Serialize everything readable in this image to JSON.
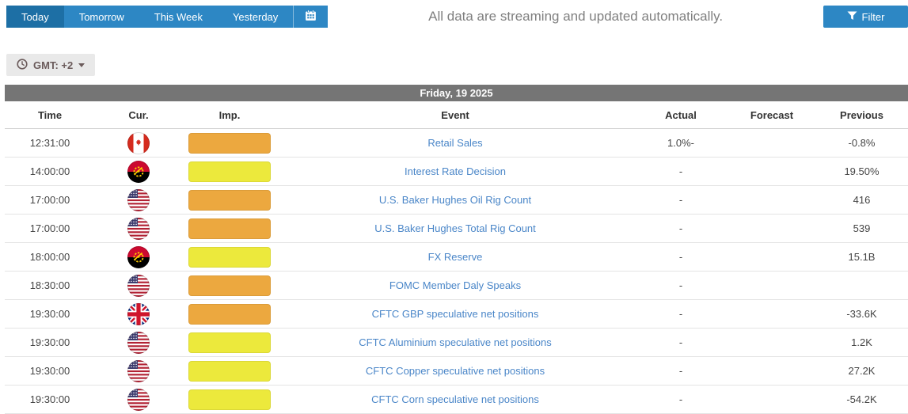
{
  "tabs": {
    "items": [
      {
        "label": "Today",
        "active": true
      },
      {
        "label": "Tomorrow",
        "active": false
      },
      {
        "label": "This Week",
        "active": false
      },
      {
        "label": "Yesterday",
        "active": false
      }
    ]
  },
  "header": {
    "streaming_note": "All data are streaming and updated automatically.",
    "filter_label": "Filter"
  },
  "toolbar": {
    "gmt_label": "GMT: +2"
  },
  "table": {
    "date_header": "Friday, 19 2025",
    "columns": [
      "Time",
      "Cur.",
      "Imp.",
      "Event",
      "Actual",
      "Forecast",
      "Previous"
    ],
    "rows": [
      {
        "time": "12:31:00",
        "currency": "canada",
        "importance": "orange",
        "event": "Retail Sales",
        "actual": "1.0%-",
        "forecast": "",
        "previous": "-0.8%"
      },
      {
        "time": "14:00:00",
        "currency": "angola",
        "importance": "yellow",
        "event": "Interest Rate Decision",
        "actual": "-",
        "forecast": "",
        "previous": "19.50%"
      },
      {
        "time": "17:00:00",
        "currency": "usa",
        "importance": "orange",
        "event": "U.S. Baker Hughes Oil Rig Count",
        "actual": "-",
        "forecast": "",
        "previous": "416"
      },
      {
        "time": "17:00:00",
        "currency": "usa",
        "importance": "orange",
        "event": "U.S. Baker Hughes Total Rig Count",
        "actual": "-",
        "forecast": "",
        "previous": "539"
      },
      {
        "time": "18:00:00",
        "currency": "angola",
        "importance": "yellow",
        "event": "FX Reserve",
        "actual": "-",
        "forecast": "",
        "previous": "15.1B"
      },
      {
        "time": "18:30:00",
        "currency": "usa",
        "importance": "orange",
        "event": "FOMC Member Daly Speaks",
        "actual": "-",
        "forecast": "",
        "previous": ""
      },
      {
        "time": "19:30:00",
        "currency": "uk",
        "importance": "orange",
        "event": "CFTC GBP speculative net positions",
        "actual": "-",
        "forecast": "",
        "previous": "-33.6K"
      },
      {
        "time": "19:30:00",
        "currency": "usa",
        "importance": "yellow",
        "event": "CFTC Aluminium speculative net positions",
        "actual": "-",
        "forecast": "",
        "previous": "1.2K"
      },
      {
        "time": "19:30:00",
        "currency": "usa",
        "importance": "yellow",
        "event": "CFTC Copper speculative net positions",
        "actual": "-",
        "forecast": "",
        "previous": "27.2K"
      },
      {
        "time": "19:30:00",
        "currency": "usa",
        "importance": "yellow",
        "event": "CFTC Corn speculative net positions",
        "actual": "-",
        "forecast": "",
        "previous": "-54.2K"
      }
    ]
  },
  "colors": {
    "tab_bar": "#2d87c4",
    "tab_active": "#1d6fa5",
    "filter_button": "#2d87c4",
    "date_header_bg": "#757575",
    "importance_orange": "#eca83f",
    "importance_yellow": "#ece93c",
    "event_link": "#4a86c8"
  }
}
